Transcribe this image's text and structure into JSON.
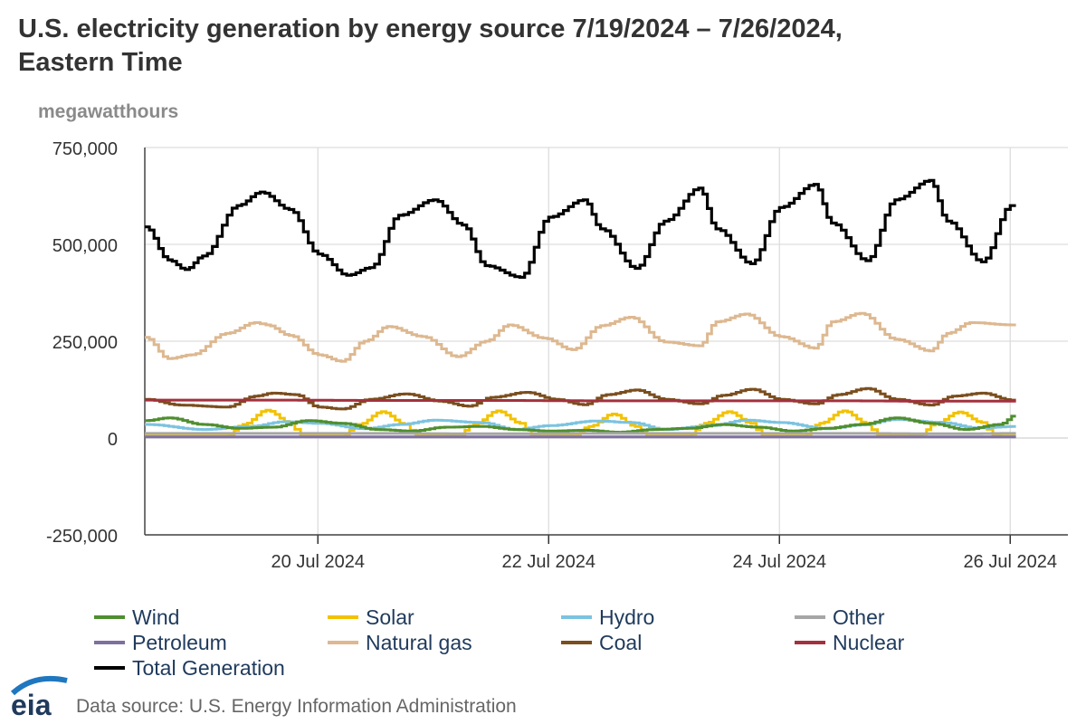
{
  "header": {
    "title_line1": "U.S. electricity generation by energy source 7/19/2024 – 7/26/2024,",
    "title_line2": "Eastern Time",
    "unit": "megawatthours"
  },
  "footer": {
    "logo_text": "eia",
    "source": "Data source: U.S. Energy Information Administration"
  },
  "colors": {
    "Wind": "#4f8e2f",
    "Solar": "#f2c200",
    "Hydro": "#7cc3e0",
    "Other": "#a6a6a6",
    "Petroleum": "#7f6fa0",
    "Natural gas": "#ddb890",
    "Coal": "#7a4e1e",
    "Nuclear": "#a3313d",
    "Total Generation": "#000000",
    "logo_blue": "#1f77c0"
  },
  "chart_data": {
    "type": "line",
    "title": "U.S. electricity generation by energy source 7/19/2024 – 7/26/2024, Eastern Time",
    "ylabel": "megawatthours",
    "xlabel": "",
    "ylim": [
      -250000,
      750000
    ],
    "yticks": [
      750000,
      500000,
      250000,
      0,
      -250000
    ],
    "ytick_labels": [
      "750,000",
      "500,000",
      "250,000",
      "0",
      "-250,000"
    ],
    "xlim_days": [
      -0.5,
      7.5
    ],
    "xticks_days": [
      1,
      3,
      5,
      7
    ],
    "xtick_labels": [
      "20 Jul 2024",
      "22 Jul 2024",
      "24 Jul 2024",
      "26 Jul 2024"
    ],
    "x_unit": "days after 19 Jul 2024 00:00",
    "grid": true,
    "legend_position": "bottom",
    "series": [
      {
        "name": "Total Generation",
        "x": [
          -0.5,
          -0.3,
          -0.15,
          0,
          0.3,
          0.5,
          0.75,
          1,
          1.25,
          1.45,
          1.7,
          2,
          2.25,
          2.45,
          2.75,
          3,
          3.3,
          3.45,
          3.75,
          4,
          4.3,
          4.45,
          4.75,
          5,
          5.3,
          5.45,
          5.75,
          6,
          6.3,
          6.45,
          6.75,
          7,
          7.05
        ],
        "values": [
          545000,
          460000,
          435000,
          470000,
          600000,
          635000,
          590000,
          475000,
          420000,
          440000,
          575000,
          615000,
          550000,
          445000,
          415000,
          570000,
          615000,
          540000,
          438000,
          560000,
          645000,
          540000,
          450000,
          595000,
          655000,
          555000,
          458000,
          615000,
          665000,
          560000,
          455000,
          600000,
          555000
        ]
      },
      {
        "name": "Natural gas",
        "x": [
          -0.5,
          -0.3,
          -0.1,
          0.2,
          0.45,
          0.55,
          0.75,
          1,
          1.2,
          1.4,
          1.6,
          1.9,
          2.2,
          2.45,
          2.65,
          2.95,
          3.2,
          3.45,
          3.7,
          4,
          4.3,
          4.45,
          4.7,
          5,
          5.3,
          5.45,
          5.7,
          6,
          6.3,
          6.45,
          6.65,
          7,
          7.05
        ],
        "values": [
          260000,
          205000,
          215000,
          270000,
          298000,
          292000,
          265000,
          215000,
          198000,
          250000,
          288000,
          262000,
          210000,
          250000,
          292000,
          258000,
          228000,
          290000,
          312000,
          248000,
          238000,
          300000,
          320000,
          262000,
          232000,
          300000,
          322000,
          255000,
          225000,
          270000,
          298000,
          292000,
          265000
        ]
      },
      {
        "name": "Coal",
        "x": [
          -0.5,
          -0.2,
          0.2,
          0.45,
          0.6,
          0.8,
          1,
          1.2,
          1.45,
          1.75,
          2.05,
          2.3,
          2.5,
          2.8,
          3.05,
          3.3,
          3.5,
          3.75,
          4,
          4.3,
          4.5,
          4.75,
          5,
          5.3,
          5.5,
          5.75,
          6,
          6.3,
          6.5,
          6.75,
          7,
          7.05
        ],
        "values": [
          100000,
          85000,
          80000,
          108000,
          116000,
          112000,
          80000,
          75000,
          100000,
          114000,
          95000,
          82000,
          105000,
          118000,
          100000,
          86000,
          112000,
          124000,
          100000,
          88000,
          110000,
          126000,
          100000,
          88000,
          112000,
          128000,
          100000,
          85000,
          108000,
          116000,
          98000,
          95000
        ]
      },
      {
        "name": "Nuclear",
        "x": [
          -0.5,
          0.5,
          1.5,
          2.5,
          3.5,
          4.5,
          5.5,
          6.5,
          7.05
        ],
        "values": [
          98000,
          98000,
          97000,
          97000,
          96000,
          96000,
          96000,
          95000,
          95000
        ]
      },
      {
        "name": "Solar",
        "x": [
          -0.5,
          0.2,
          0.35,
          0.55,
          0.75,
          0.85,
          1.2,
          1.35,
          1.55,
          1.75,
          1.85,
          2.2,
          2.35,
          2.55,
          2.75,
          2.85,
          3.2,
          3.35,
          3.55,
          3.75,
          3.85,
          4.2,
          4.35,
          4.55,
          4.75,
          4.85,
          5.2,
          5.35,
          5.55,
          5.75,
          5.85,
          6.2,
          6.35,
          6.55,
          6.75,
          6.85,
          7.05
        ],
        "values": [
          5000,
          5000,
          35000,
          72000,
          40000,
          5000,
          5000,
          35000,
          68000,
          35000,
          5000,
          5000,
          35000,
          70000,
          38000,
          5000,
          5000,
          30000,
          62000,
          30000,
          5000,
          5000,
          38000,
          68000,
          38000,
          5000,
          5000,
          38000,
          70000,
          38000,
          5000,
          5000,
          38000,
          67000,
          40000,
          5000,
          5000
        ]
      },
      {
        "name": "Hydro",
        "x": [
          -0.5,
          0,
          0.4,
          0.7,
          1,
          1.4,
          1.7,
          2,
          2.4,
          2.7,
          3,
          3.4,
          3.7,
          4,
          4.4,
          4.7,
          5,
          5.4,
          5.7,
          6,
          6.4,
          6.7,
          7.05
        ],
        "values": [
          35000,
          22000,
          30000,
          42000,
          38000,
          24000,
          35000,
          46000,
          40000,
          22000,
          32000,
          44000,
          40000,
          22000,
          32000,
          46000,
          40000,
          24000,
          34000,
          48000,
          40000,
          26000,
          30000
        ]
      },
      {
        "name": "Wind",
        "x": [
          -0.5,
          -0.3,
          0,
          0.3,
          0.6,
          0.9,
          1.2,
          1.5,
          1.8,
          2.1,
          2.4,
          2.7,
          3,
          3.3,
          3.6,
          3.9,
          4.2,
          4.5,
          4.8,
          5.1,
          5.4,
          5.7,
          6,
          6.3,
          6.6,
          6.9,
          7.05
        ],
        "values": [
          45000,
          52000,
          35000,
          25000,
          28000,
          45000,
          38000,
          22000,
          18000,
          28000,
          30000,
          22000,
          18000,
          20000,
          15000,
          22000,
          25000,
          35000,
          28000,
          18000,
          25000,
          35000,
          52000,
          38000,
          22000,
          35000,
          60000
        ]
      },
      {
        "name": "Other",
        "x": [
          -0.5,
          0.5,
          1.5,
          2.5,
          3.5,
          4.5,
          5.5,
          6.5,
          7.05
        ],
        "values": [
          12000,
          12000,
          12000,
          11000,
          12000,
          12000,
          12000,
          11000,
          12000
        ]
      },
      {
        "name": "Petroleum",
        "x": [
          -0.5,
          7.05
        ],
        "values": [
          3000,
          3000
        ]
      }
    ]
  },
  "legend": [
    {
      "label": "Wind",
      "col": 0,
      "row": 0
    },
    {
      "label": "Solar",
      "col": 1,
      "row": 0
    },
    {
      "label": "Hydro",
      "col": 2,
      "row": 0
    },
    {
      "label": "Other",
      "col": 3,
      "row": 0
    },
    {
      "label": "Petroleum",
      "col": 0,
      "row": 1
    },
    {
      "label": "Natural gas",
      "col": 1,
      "row": 1
    },
    {
      "label": "Coal",
      "col": 2,
      "row": 1
    },
    {
      "label": "Nuclear",
      "col": 3,
      "row": 1
    },
    {
      "label": "Total Generation",
      "col": 0,
      "row": 2
    }
  ]
}
